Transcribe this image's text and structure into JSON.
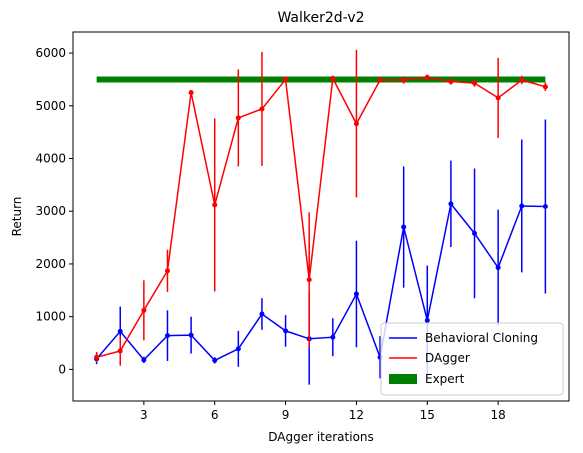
{
  "chart_data": {
    "type": "line",
    "title": "Walker2d-v2",
    "xlabel": "DAgger iterations",
    "ylabel": "Return",
    "xlim": [
      0,
      21
    ],
    "ylim": [
      -600,
      6400
    ],
    "xticks": [
      3,
      6,
      9,
      12,
      15,
      18
    ],
    "yticks": [
      0,
      1000,
      2000,
      3000,
      4000,
      5000,
      6000
    ],
    "grid": false,
    "legend_position": "lower-right",
    "x": [
      1,
      2,
      3,
      4,
      5,
      6,
      7,
      8,
      9,
      10,
      11,
      12,
      13,
      14,
      15,
      16,
      17,
      18,
      19,
      20
    ],
    "series": [
      {
        "name": "Behavioral Cloning",
        "color": "#0000ff",
        "values": [
          200,
          720,
          180,
          640,
          650,
          170,
          390,
          1050,
          730,
          580,
          610,
          1430,
          230,
          2700,
          930,
          3140,
          2580,
          1930,
          3100,
          3090
        ],
        "errors": [
          100,
          470,
          60,
          480,
          350,
          60,
          340,
          300,
          300,
          870,
          360,
          1010,
          400,
          1150,
          1040,
          820,
          1230,
          1100,
          1260,
          1650
        ]
      },
      {
        "name": "DAgger",
        "color": "#ff0000",
        "values": [
          230,
          350,
          1120,
          1870,
          5250,
          3120,
          4770,
          4940,
          5500,
          1700,
          5520,
          4660,
          5490,
          5490,
          5540,
          5460,
          5430,
          5150,
          5490,
          5360
        ],
        "errors": [
          100,
          280,
          570,
          400,
          50,
          1640,
          920,
          1080,
          50,
          1280,
          50,
          1400,
          50,
          70,
          50,
          60,
          70,
          760,
          80,
          80
        ]
      }
    ],
    "expert": {
      "name": "Expert",
      "color": "#008000",
      "value": 5500,
      "x_range": [
        1,
        20
      ]
    }
  }
}
